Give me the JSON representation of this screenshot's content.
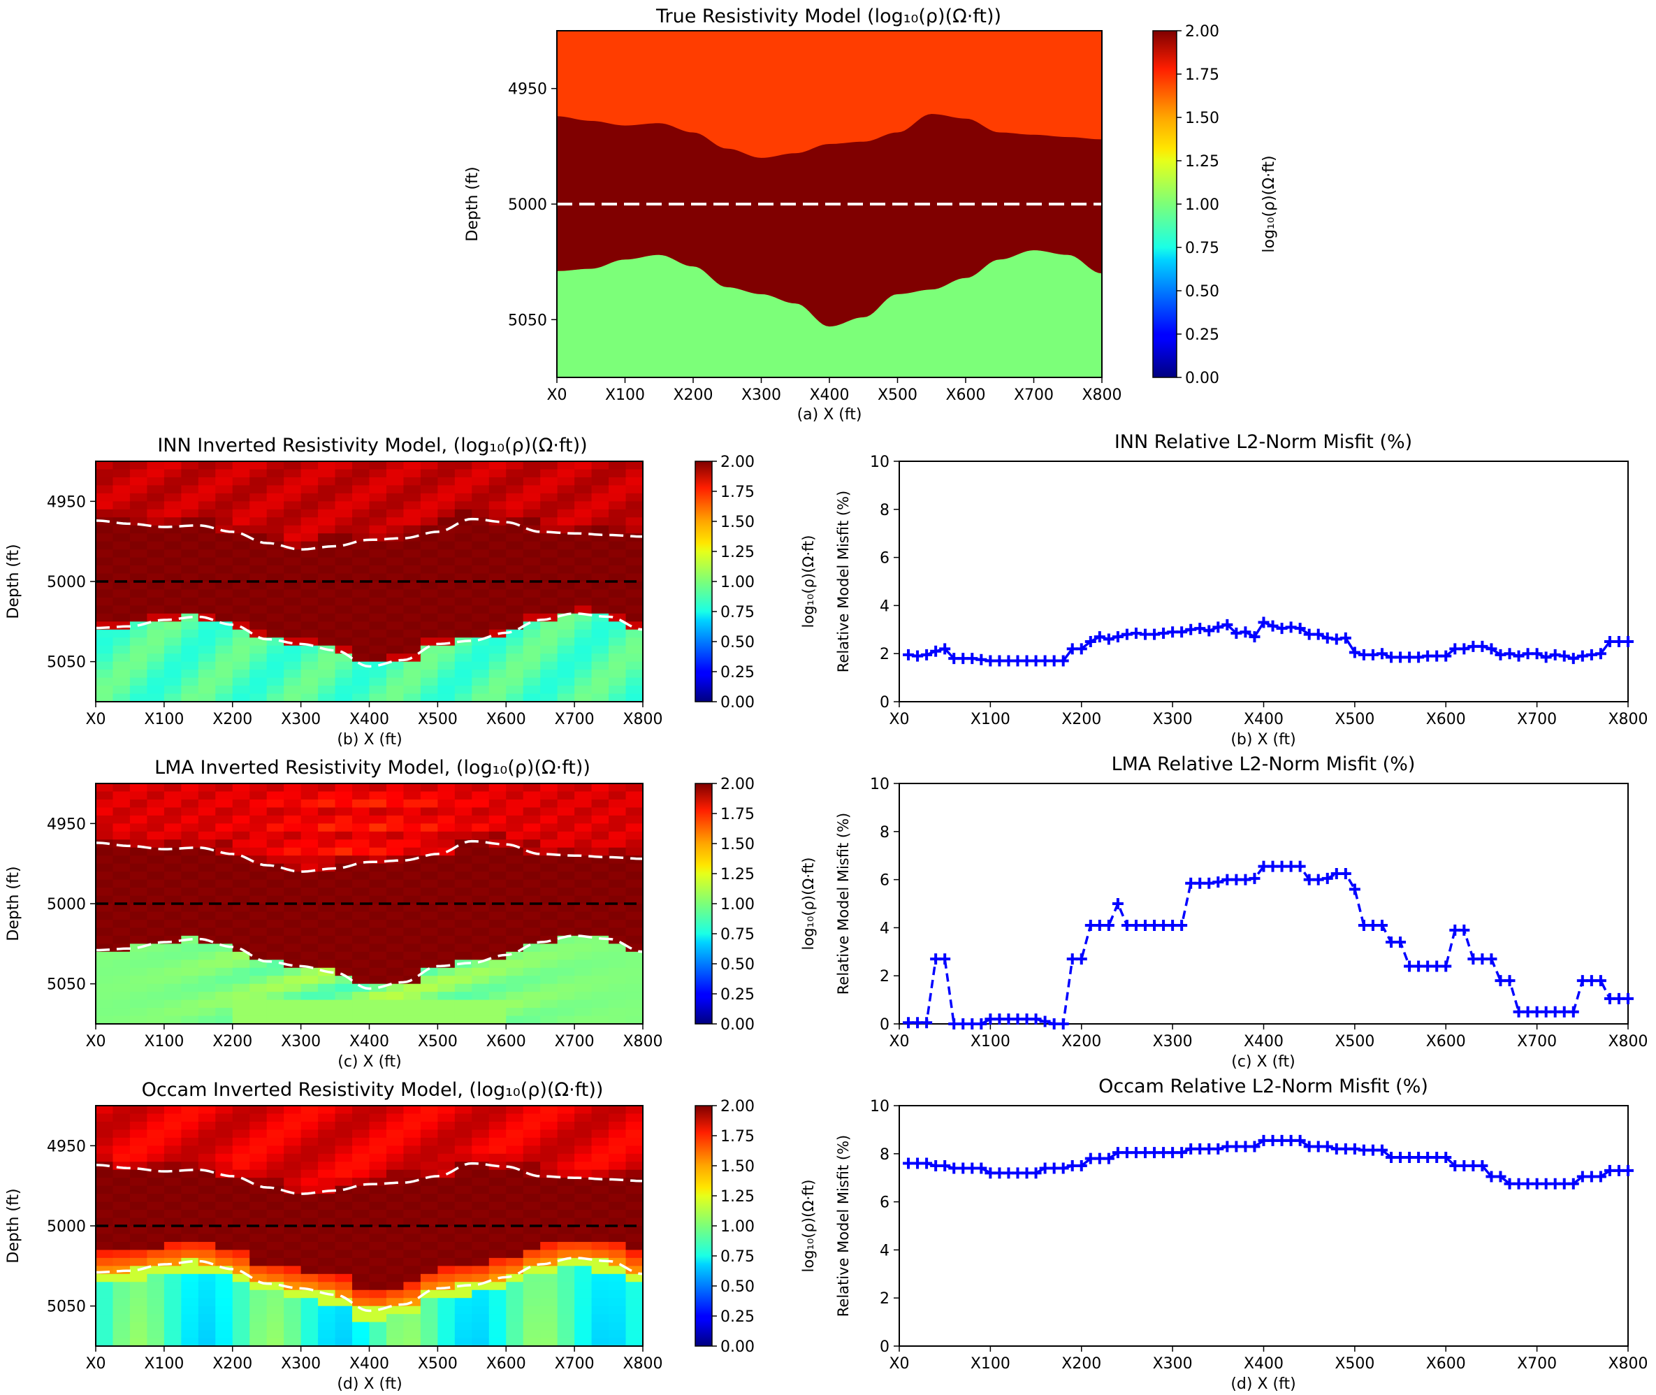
{
  "chart_data": [
    {
      "id": "a",
      "type": "heatmap",
      "title": "True Resistivity Model (log₁₀(ρ)(Ω·ft))",
      "xlabel": "(a) X (ft)",
      "ylabel": "Depth (ft)",
      "x_ticks": [
        "X0",
        "X100",
        "X200",
        "X300",
        "X400",
        "X500",
        "X600",
        "X700",
        "X800"
      ],
      "y_ticks": [
        "4950",
        "5000",
        "5050"
      ],
      "xlim": [
        0,
        800
      ],
      "ylim": [
        5075,
        4925
      ],
      "colorbar": {
        "label": "log₁₀(ρ)(Ω·ft)",
        "ticks": [
          "2.00",
          "1.75",
          "1.50",
          "1.25",
          "1.00",
          "0.75",
          "0.50",
          "0.25",
          "0.00"
        ],
        "range": [
          0,
          2
        ]
      },
      "layers": [
        {
          "name": "top layer",
          "value": 1.85,
          "color": "#ff3d00"
        },
        {
          "name": "middle layer",
          "value": 2.0,
          "color": "#800000"
        },
        {
          "name": "bottom layer",
          "value": 1.0,
          "color": "#7cff79"
        }
      ],
      "boundary_x": [
        0,
        50,
        100,
        150,
        200,
        250,
        300,
        350,
        400,
        450,
        500,
        550,
        600,
        650,
        700,
        750,
        800
      ],
      "upper_boundary_depth": [
        4962,
        4964,
        4966,
        4965,
        4969,
        4976,
        4980,
        4978,
        4974,
        4973,
        4969,
        4961,
        4963,
        4969,
        4970,
        4971,
        4972
      ],
      "lower_boundary_depth": [
        5029,
        5028,
        5024,
        5022,
        5027,
        5036,
        5039,
        5043,
        5053,
        5049,
        5039,
        5037,
        5032,
        5024,
        5020,
        5022,
        5030
      ],
      "dashed_line_depth": 5000,
      "dashed_line_color": "#ffffff"
    },
    {
      "id": "b",
      "type": "heatmap",
      "title": "INN Inverted Resistivity Model, (log₁₀(ρ)(Ω·ft))",
      "xlabel": "(b) X (ft)",
      "ylabel": "Depth (ft)",
      "x_ticks": [
        "X0",
        "X100",
        "X200",
        "X300",
        "X400",
        "X500",
        "X600",
        "X700",
        "X800"
      ],
      "y_ticks": [
        "4950",
        "5000",
        "5050"
      ],
      "colorbar": {
        "ticks": [
          "2.00",
          "1.75",
          "1.50",
          "1.25",
          "1.00",
          "0.75",
          "0.50",
          "0.25",
          "0.00"
        ],
        "range": [
          0,
          2
        ]
      },
      "dashed_line_depth": 5000,
      "dashed_line_color": "#000000",
      "style": "inn"
    },
    {
      "id": "c",
      "type": "heatmap",
      "title": "LMA Inverted Resistivity Model, (log₁₀(ρ)(Ω·ft))",
      "xlabel": "(c) X (ft)",
      "ylabel": "Depth (ft)",
      "x_ticks": [
        "X0",
        "X100",
        "X200",
        "X300",
        "X400",
        "X500",
        "X600",
        "X700",
        "X800"
      ],
      "y_ticks": [
        "4950",
        "5000",
        "5050"
      ],
      "colorbar": {
        "ticks": [
          "2.00",
          "1.75",
          "1.50",
          "1.25",
          "1.00",
          "0.75",
          "0.50",
          "0.25",
          "0.00"
        ],
        "range": [
          0,
          2
        ]
      },
      "dashed_line_depth": 5000,
      "dashed_line_color": "#000000",
      "style": "lma"
    },
    {
      "id": "d",
      "type": "heatmap",
      "title": "Occam Inverted Resistivity Model, (log₁₀(ρ)(Ω·ft))",
      "xlabel": "(d) X (ft)",
      "ylabel": "Depth (ft)",
      "x_ticks": [
        "X0",
        "X100",
        "X200",
        "X300",
        "X400",
        "X500",
        "X600",
        "X700",
        "X800"
      ],
      "y_ticks": [
        "4950",
        "5000",
        "5050"
      ],
      "colorbar": {
        "ticks": [
          "2.00",
          "1.75",
          "1.50",
          "1.25",
          "1.00",
          "0.75",
          "0.50",
          "0.25",
          "0.00"
        ],
        "range": [
          0,
          2
        ]
      },
      "dashed_line_depth": 5000,
      "dashed_line_color": "#000000",
      "style": "occam"
    },
    {
      "id": "e",
      "type": "line",
      "title": "INN Relative L2-Norm Misfit (%)",
      "xlabel": "(b) X (ft)",
      "ylabel_line1": "Relative Model Misfit (%)",
      "ylabel_line2": "log₁₀(ρ)(Ω·ft)",
      "x_ticks": [
        "X0",
        "X100",
        "X200",
        "X300",
        "X400",
        "X500",
        "X600",
        "X700",
        "X800"
      ],
      "y_ticks": [
        "0",
        "2",
        "4",
        "6",
        "8",
        "10"
      ],
      "xlim": [
        0,
        800
      ],
      "ylim": [
        0,
        10
      ],
      "line_style": "solid",
      "color": "#0000ff",
      "series": [
        {
          "x": [
            10,
            20,
            30,
            40,
            50,
            60,
            70,
            80,
            90,
            100,
            110,
            120,
            130,
            140,
            150,
            160,
            170,
            180,
            190,
            200,
            210,
            220,
            230,
            240,
            250,
            260,
            270,
            280,
            290,
            300,
            310,
            320,
            330,
            340,
            350,
            360,
            370,
            380,
            390,
            400,
            410,
            420,
            430,
            440,
            450,
            460,
            470,
            480,
            490,
            500,
            510,
            520,
            530,
            540,
            550,
            560,
            570,
            580,
            590,
            600,
            610,
            620,
            630,
            640,
            650,
            660,
            670,
            680,
            690,
            700,
            710,
            720,
            730,
            740,
            750,
            760,
            770,
            780,
            790,
            800
          ],
          "values": [
            1.95,
            1.9,
            1.95,
            2.1,
            2.2,
            1.8,
            1.8,
            1.8,
            1.75,
            1.7,
            1.7,
            1.7,
            1.7,
            1.7,
            1.7,
            1.7,
            1.7,
            1.7,
            2.2,
            2.2,
            2.5,
            2.7,
            2.6,
            2.7,
            2.8,
            2.85,
            2.8,
            2.8,
            2.85,
            2.9,
            2.9,
            3.0,
            3.05,
            2.95,
            3.1,
            3.2,
            2.85,
            2.9,
            2.7,
            3.3,
            3.15,
            3.05,
            3.1,
            3.05,
            2.8,
            2.8,
            2.65,
            2.6,
            2.65,
            2.05,
            1.95,
            1.95,
            2.0,
            1.85,
            1.85,
            1.85,
            1.85,
            1.9,
            1.9,
            1.9,
            2.2,
            2.2,
            2.3,
            2.3,
            2.2,
            1.95,
            2.0,
            1.9,
            2.0,
            2.0,
            1.85,
            1.95,
            1.9,
            1.8,
            1.9,
            1.95,
            2.0,
            2.5,
            2.5,
            2.5
          ]
        }
      ]
    },
    {
      "id": "f",
      "type": "line",
      "title": "LMA Relative L2-Norm Misfit (%)",
      "xlabel": "(c) X (ft)",
      "ylabel_line1": "Relative Model Misfit (%)",
      "ylabel_line2": "log₁₀(ρ)(Ω·ft)",
      "x_ticks": [
        "X0",
        "X100",
        "X200",
        "X300",
        "X400",
        "X500",
        "X600",
        "X700",
        "X800"
      ],
      "y_ticks": [
        "0",
        "2",
        "4",
        "6",
        "8",
        "10"
      ],
      "xlim": [
        0,
        800
      ],
      "ylim": [
        0,
        10
      ],
      "line_style": "dashed",
      "color": "#0000ff",
      "series": [
        {
          "x": [
            10,
            20,
            30,
            40,
            50,
            60,
            70,
            80,
            90,
            100,
            110,
            120,
            130,
            140,
            150,
            160,
            170,
            180,
            190,
            200,
            210,
            220,
            230,
            240,
            250,
            260,
            270,
            280,
            290,
            300,
            310,
            320,
            330,
            340,
            350,
            360,
            370,
            380,
            390,
            400,
            410,
            420,
            430,
            440,
            450,
            460,
            470,
            480,
            490,
            500,
            510,
            520,
            530,
            540,
            550,
            560,
            570,
            580,
            590,
            600,
            610,
            620,
            630,
            640,
            650,
            660,
            670,
            680,
            690,
            700,
            710,
            720,
            730,
            740,
            750,
            760,
            770,
            780,
            790,
            800
          ],
          "values": [
            0.05,
            0.05,
            0.05,
            2.7,
            2.7,
            0.0,
            0.0,
            0.0,
            0.0,
            0.2,
            0.2,
            0.2,
            0.2,
            0.2,
            0.2,
            0.1,
            0.0,
            0.0,
            2.7,
            2.7,
            4.1,
            4.1,
            4.1,
            5.0,
            4.1,
            4.1,
            4.1,
            4.1,
            4.1,
            4.1,
            4.1,
            5.85,
            5.85,
            5.85,
            5.9,
            6.0,
            6.0,
            6.0,
            6.05,
            6.55,
            6.55,
            6.55,
            6.55,
            6.55,
            6.0,
            6.0,
            6.05,
            6.25,
            6.25,
            5.6,
            4.1,
            4.1,
            4.1,
            3.4,
            3.4,
            2.4,
            2.4,
            2.4,
            2.4,
            2.4,
            3.9,
            3.9,
            2.7,
            2.7,
            2.7,
            1.8,
            1.8,
            0.5,
            0.5,
            0.5,
            0.5,
            0.5,
            0.5,
            0.5,
            1.8,
            1.8,
            1.8,
            1.05,
            1.05,
            1.05
          ]
        }
      ]
    },
    {
      "id": "g",
      "type": "line",
      "title": "Occam Relative L2-Norm Misfit (%)",
      "xlabel": "(d) X (ft)",
      "ylabel_line1": "Relative Model Misfit (%)",
      "ylabel_line2": "log₁₀(ρ)(Ω·ft)",
      "x_ticks": [
        "X0",
        "X100",
        "X200",
        "X300",
        "X400",
        "X500",
        "X600",
        "X700",
        "X800"
      ],
      "y_ticks": [
        "0",
        "2",
        "4",
        "6",
        "8",
        "10"
      ],
      "xlim": [
        0,
        800
      ],
      "ylim": [
        0,
        10
      ],
      "line_style": "solid",
      "color": "#0000ff",
      "series": [
        {
          "x": [
            10,
            20,
            30,
            40,
            50,
            60,
            70,
            80,
            90,
            100,
            110,
            120,
            130,
            140,
            150,
            160,
            170,
            180,
            190,
            200,
            210,
            220,
            230,
            240,
            250,
            260,
            270,
            280,
            290,
            300,
            310,
            320,
            330,
            340,
            350,
            360,
            370,
            380,
            390,
            400,
            410,
            420,
            430,
            440,
            450,
            460,
            470,
            480,
            490,
            500,
            510,
            520,
            530,
            540,
            550,
            560,
            570,
            580,
            590,
            600,
            610,
            620,
            630,
            640,
            650,
            660,
            670,
            680,
            690,
            700,
            710,
            720,
            730,
            740,
            750,
            760,
            770,
            780,
            790,
            800
          ],
          "values": [
            7.6,
            7.6,
            7.6,
            7.5,
            7.5,
            7.4,
            7.4,
            7.4,
            7.4,
            7.2,
            7.2,
            7.2,
            7.2,
            7.2,
            7.2,
            7.4,
            7.4,
            7.4,
            7.5,
            7.5,
            7.8,
            7.8,
            7.8,
            8.05,
            8.05,
            8.05,
            8.05,
            8.05,
            8.05,
            8.05,
            8.05,
            8.2,
            8.2,
            8.2,
            8.2,
            8.3,
            8.3,
            8.3,
            8.3,
            8.55,
            8.55,
            8.55,
            8.55,
            8.55,
            8.3,
            8.3,
            8.3,
            8.2,
            8.2,
            8.2,
            8.15,
            8.15,
            8.15,
            7.85,
            7.85,
            7.85,
            7.85,
            7.85,
            7.85,
            7.85,
            7.5,
            7.5,
            7.5,
            7.5,
            7.05,
            7.05,
            6.75,
            6.75,
            6.75,
            6.75,
            6.75,
            6.75,
            6.75,
            6.75,
            7.05,
            7.05,
            7.05,
            7.3,
            7.3,
            7.3
          ]
        }
      ]
    }
  ]
}
